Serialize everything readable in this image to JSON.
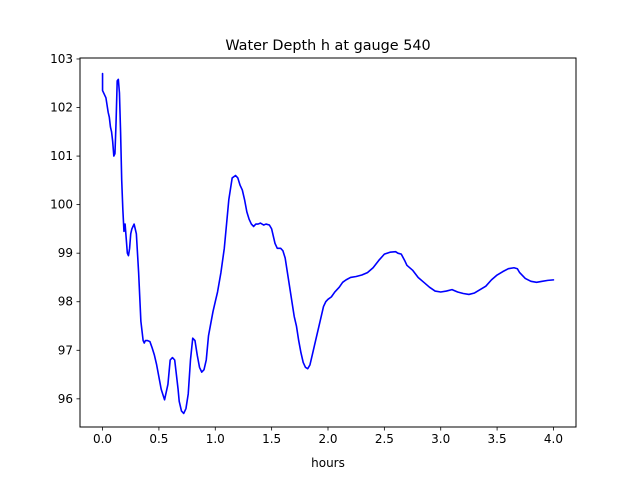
{
  "chart_data": {
    "type": "line",
    "title": "Water Depth h at gauge 540",
    "xlabel": "hours",
    "ylabel": "",
    "xlim": [
      -0.2,
      4.2
    ],
    "ylim": [
      95.42,
      103.02
    ],
    "x_ticks": [
      0.0,
      0.5,
      1.0,
      1.5,
      2.0,
      2.5,
      3.0,
      3.5,
      4.0
    ],
    "x_tick_labels": [
      "0.0",
      "0.5",
      "1.0",
      "1.5",
      "2.0",
      "2.5",
      "3.0",
      "3.5",
      "4.0"
    ],
    "y_ticks": [
      96,
      97,
      98,
      99,
      100,
      101,
      102,
      103
    ],
    "y_tick_labels": [
      "96",
      "97",
      "98",
      "99",
      "100",
      "101",
      "102",
      "103"
    ],
    "grid": false,
    "series": [
      {
        "color": "#0000ff",
        "x": [
          0.0,
          0.0,
          0.01,
          0.03,
          0.05,
          0.06,
          0.07,
          0.08,
          0.09,
          0.1,
          0.11,
          0.12,
          0.13,
          0.14,
          0.15,
          0.16,
          0.17,
          0.18,
          0.19,
          0.2,
          0.21,
          0.22,
          0.23,
          0.24,
          0.25,
          0.26,
          0.27,
          0.28,
          0.3,
          0.32,
          0.34,
          0.36,
          0.37,
          0.38,
          0.39,
          0.4,
          0.42,
          0.44,
          0.46,
          0.48,
          0.5,
          0.52,
          0.55,
          0.58,
          0.6,
          0.62,
          0.64,
          0.65,
          0.67,
          0.68,
          0.7,
          0.72,
          0.74,
          0.76,
          0.78,
          0.8,
          0.82,
          0.84,
          0.86,
          0.88,
          0.9,
          0.92,
          0.94,
          0.96,
          0.98,
          1.0,
          1.02,
          1.05,
          1.08,
          1.1,
          1.12,
          1.15,
          1.18,
          1.2,
          1.22,
          1.24,
          1.26,
          1.28,
          1.3,
          1.32,
          1.34,
          1.36,
          1.38,
          1.4,
          1.43,
          1.45,
          1.48,
          1.5,
          1.53,
          1.55,
          1.58,
          1.6,
          1.62,
          1.64,
          1.66,
          1.68,
          1.7,
          1.72,
          1.74,
          1.76,
          1.78,
          1.8,
          1.82,
          1.84,
          1.86,
          1.88,
          1.9,
          1.92,
          1.94,
          1.96,
          1.98,
          2.0,
          2.03,
          2.06,
          2.1,
          2.13,
          2.16,
          2.2,
          2.25,
          2.3,
          2.35,
          2.4,
          2.45,
          2.5,
          2.55,
          2.6,
          2.62,
          2.65,
          2.68,
          2.7,
          2.75,
          2.8,
          2.85,
          2.9,
          2.95,
          3.0,
          3.05,
          3.1,
          3.15,
          3.2,
          3.25,
          3.3,
          3.35,
          3.4,
          3.45,
          3.5,
          3.55,
          3.6,
          3.65,
          3.68,
          3.7,
          3.75,
          3.8,
          3.85,
          3.9,
          3.95,
          4.0
        ],
        "y": [
          102.7,
          102.35,
          102.3,
          102.2,
          101.9,
          101.8,
          101.6,
          101.5,
          101.3,
          101.0,
          101.05,
          101.7,
          102.55,
          102.58,
          102.3,
          101.5,
          100.5,
          99.9,
          99.45,
          99.6,
          99.3,
          99.0,
          98.95,
          99.1,
          99.4,
          99.5,
          99.55,
          99.6,
          99.4,
          98.6,
          97.6,
          97.2,
          97.15,
          97.2,
          97.2,
          97.2,
          97.18,
          97.05,
          96.9,
          96.7,
          96.45,
          96.2,
          95.98,
          96.3,
          96.8,
          96.85,
          96.8,
          96.6,
          96.2,
          95.95,
          95.75,
          95.7,
          95.8,
          96.1,
          96.8,
          97.25,
          97.2,
          96.9,
          96.65,
          96.55,
          96.6,
          96.8,
          97.3,
          97.55,
          97.8,
          98.0,
          98.2,
          98.6,
          99.1,
          99.6,
          100.1,
          100.55,
          100.6,
          100.55,
          100.4,
          100.3,
          100.1,
          99.85,
          99.7,
          99.6,
          99.55,
          99.6,
          99.6,
          99.62,
          99.58,
          99.6,
          99.58,
          99.5,
          99.2,
          99.1,
          99.1,
          99.05,
          98.9,
          98.6,
          98.3,
          98.0,
          97.7,
          97.5,
          97.2,
          96.95,
          96.75,
          96.65,
          96.62,
          96.7,
          96.9,
          97.1,
          97.3,
          97.5,
          97.7,
          97.9,
          98.0,
          98.05,
          98.1,
          98.2,
          98.3,
          98.4,
          98.45,
          98.5,
          98.52,
          98.55,
          98.6,
          98.7,
          98.85,
          98.98,
          99.02,
          99.03,
          99.0,
          98.98,
          98.85,
          98.75,
          98.65,
          98.5,
          98.4,
          98.3,
          98.22,
          98.2,
          98.22,
          98.25,
          98.2,
          98.17,
          98.15,
          98.18,
          98.25,
          98.32,
          98.45,
          98.55,
          98.62,
          98.68,
          98.7,
          98.68,
          98.6,
          98.48,
          98.42,
          98.4,
          98.42,
          98.44,
          98.45
        ]
      }
    ]
  }
}
